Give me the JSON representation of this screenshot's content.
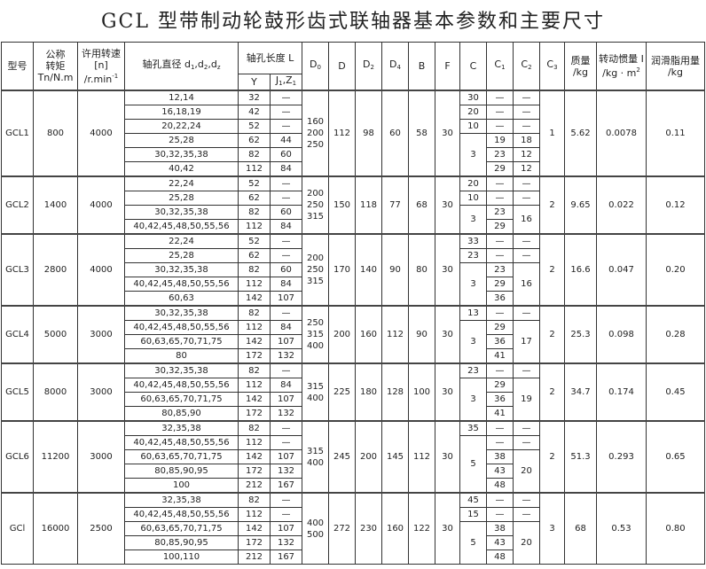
{
  "title": "GCL 型带制动轮鼓形齿式联轴器基本参数和主要尺寸",
  "header": {
    "model": "型号",
    "torque": [
      "公称",
      "转矩",
      "Tn/N.m"
    ],
    "speed": [
      "许用转速",
      "[n]",
      "/r.min",
      "-1"
    ],
    "bore": [
      "轴孔直径 d",
      "1",
      ",d",
      "2",
      ",d",
      "z"
    ],
    "length": "轴孔长度 L",
    "y": "Y",
    "j": [
      "J",
      "1",
      ",Z",
      "1"
    ],
    "d0": [
      "D",
      "0"
    ],
    "d": "D",
    "d2": [
      "D",
      "2"
    ],
    "d4": [
      "D",
      "4"
    ],
    "b": "B",
    "f": "F",
    "c": "C",
    "c1": [
      "C",
      "1"
    ],
    "c2": [
      "C",
      "2"
    ],
    "c3": [
      "C",
      "3"
    ],
    "mass": [
      "质量",
      "/kg"
    ],
    "inertia": [
      "转动惯量 I",
      "/kg · m",
      "2"
    ],
    "grease": [
      "润滑脂用量",
      "/kg"
    ]
  },
  "groups": [
    {
      "model": "GCL1",
      "torque": "800",
      "speed": "4000",
      "bores": [
        "12,14",
        "16,18,19",
        "20,22,24",
        "25,28",
        "30,32,35,38",
        "40,42"
      ],
      "y": [
        "32",
        "42",
        "52",
        "62",
        "82",
        "112"
      ],
      "j": [
        "—",
        "—",
        "—",
        "44",
        "60",
        "84"
      ],
      "d0": [
        "160",
        "200",
        "250"
      ],
      "D": "112",
      "D2": "98",
      "D4": "60",
      "B": "58",
      "F": "30",
      "c": [
        {
          "v": "30",
          "span": 1
        },
        {
          "v": "20",
          "span": 1
        },
        {
          "v": "10",
          "span": 1
        },
        {
          "v": "3",
          "span": 3
        }
      ],
      "c1": [
        "—",
        "—",
        "—",
        "19",
        "23",
        "29"
      ],
      "c2": [
        {
          "v": "—",
          "span": 1
        },
        {
          "v": "—",
          "span": 1
        },
        {
          "v": "—",
          "span": 1
        },
        {
          "v": "18",
          "span": 1
        },
        {
          "v": "12",
          "span": 1
        },
        {
          "v": "12",
          "span": 1
        }
      ],
      "c3": "1",
      "mass": "5.62",
      "inertia": "0.0078",
      "grease": "0.11"
    },
    {
      "model": "GCL2",
      "torque": "1400",
      "speed": "4000",
      "bores": [
        "22,24",
        "25,28",
        "30,32,35,38",
        "40,42,45,48,50,55,56"
      ],
      "y": [
        "52",
        "62",
        "82",
        "112"
      ],
      "j": [
        "—",
        "—",
        "60",
        "84"
      ],
      "d0": [
        "200",
        "250",
        "315"
      ],
      "D": "150",
      "D2": "118",
      "D4": "77",
      "B": "68",
      "F": "30",
      "c": [
        {
          "v": "20",
          "span": 1
        },
        {
          "v": "10",
          "span": 1
        },
        {
          "v": "3",
          "span": 2
        }
      ],
      "c1": [
        "—",
        "—",
        "23",
        "29"
      ],
      "c2": [
        {
          "v": "—",
          "span": 1
        },
        {
          "v": "—",
          "span": 1
        },
        {
          "v": "16",
          "span": 2
        }
      ],
      "c3": "2",
      "mass": "9.65",
      "inertia": "0.022",
      "grease": "0.12"
    },
    {
      "model": "GCL3",
      "torque": "2800",
      "speed": "4000",
      "bores": [
        "22,24",
        "25,28",
        "30,32,35,38",
        "40,42,45,48,50,55,56",
        "60,63"
      ],
      "y": [
        "52",
        "62",
        "82",
        "112",
        "142"
      ],
      "j": [
        "—",
        "—",
        "60",
        "84",
        "107"
      ],
      "d0": [
        "200",
        "250",
        "315"
      ],
      "D": "170",
      "D2": "140",
      "D4": "90",
      "B": "80",
      "F": "30",
      "c": [
        {
          "v": "33",
          "span": 1
        },
        {
          "v": "23",
          "span": 1
        },
        {
          "v": "3",
          "span": 3
        }
      ],
      "c1": [
        "—",
        "—",
        "23",
        "29",
        "36"
      ],
      "c2": [
        {
          "v": "—",
          "span": 1
        },
        {
          "v": "—",
          "span": 1
        },
        {
          "v": "16",
          "span": 3
        }
      ],
      "c3": "2",
      "mass": "16.6",
      "inertia": "0.047",
      "grease": "0.20"
    },
    {
      "model": "GCL4",
      "torque": "5000",
      "speed": "3000",
      "bores": [
        "30,32,35,38",
        "40,42,45,48,50,55,56",
        "60,63,65,70,71,75",
        "80"
      ],
      "y": [
        "82",
        "112",
        "142",
        "172"
      ],
      "j": [
        "—",
        "84",
        "107",
        "132"
      ],
      "d0": [
        "250",
        "315",
        "400"
      ],
      "D": "200",
      "D2": "160",
      "D4": "112",
      "B": "90",
      "F": "30",
      "c": [
        {
          "v": "13",
          "span": 1
        },
        {
          "v": "3",
          "span": 3
        }
      ],
      "c1": [
        "—",
        "29",
        "36",
        "41"
      ],
      "c2": [
        {
          "v": "—",
          "span": 1
        },
        {
          "v": "17",
          "span": 3
        }
      ],
      "c3": "2",
      "mass": "25.3",
      "inertia": "0.098",
      "grease": "0.28"
    },
    {
      "model": "GCL5",
      "torque": "8000",
      "speed": "3000",
      "bores": [
        "30,32,35,38",
        "40,42,45,48,50,55,56",
        "60,63,65,70,71,75",
        "80,85,90"
      ],
      "y": [
        "82",
        "112",
        "142",
        "172"
      ],
      "j": [
        "—",
        "84",
        "107",
        "132"
      ],
      "d0": [
        "315",
        "400"
      ],
      "D": "225",
      "D2": "180",
      "D4": "128",
      "B": "100",
      "F": "30",
      "c": [
        {
          "v": "23",
          "span": 1
        },
        {
          "v": "3",
          "span": 3
        }
      ],
      "c1": [
        "—",
        "29",
        "36",
        "41"
      ],
      "c2": [
        {
          "v": "—",
          "span": 1
        },
        {
          "v": "19",
          "span": 3
        }
      ],
      "c3": "2",
      "mass": "34.7",
      "inertia": "0.174",
      "grease": "0.45"
    },
    {
      "model": "GCL6",
      "torque": "11200",
      "speed": "3000",
      "bores": [
        "32,35,38",
        "40,42,45,48,50,55,56",
        "60,63,65,70,71,75",
        "80,85,90,95",
        "100"
      ],
      "y": [
        "82",
        "112",
        "142",
        "172",
        "212"
      ],
      "j": [
        "—",
        "—",
        "107",
        "132",
        "167"
      ],
      "d0": [
        "315",
        "400"
      ],
      "D": "245",
      "D2": "200",
      "D4": "145",
      "B": "112",
      "F": "30",
      "c": [
        {
          "v": "35",
          "span": 1
        },
        {
          "v": "5",
          "span": 4
        }
      ],
      "c1": [
        "—",
        "—",
        "38",
        "43",
        "48"
      ],
      "c2": [
        {
          "v": "—",
          "span": 1
        },
        {
          "v": "—",
          "span": 1
        },
        {
          "v": "20",
          "span": 3
        }
      ],
      "c3": "2",
      "mass": "51.3",
      "inertia": "0.293",
      "grease": "0.65"
    },
    {
      "model": "GCl",
      "torque": "16000",
      "speed": "2500",
      "bores": [
        "32,35,38",
        "40,42,45,48,50,55,56",
        "60,63,65,70,71,75",
        "80,85,90,95",
        "100,110"
      ],
      "y": [
        "82",
        "112",
        "142",
        "172",
        "212"
      ],
      "j": [
        "—",
        "—",
        "107",
        "132",
        "167"
      ],
      "d0": [
        "400",
        "500"
      ],
      "D": "272",
      "D2": "230",
      "D4": "160",
      "B": "122",
      "F": "30",
      "c": [
        {
          "v": "45",
          "span": 1
        },
        {
          "v": "15",
          "span": 1
        },
        {
          "v": "5",
          "span": 3
        }
      ],
      "c1": [
        "—",
        "—",
        "38",
        "43",
        "48"
      ],
      "c2": [
        {
          "v": "—",
          "span": 1
        },
        {
          "v": "—",
          "span": 1
        },
        {
          "v": "20",
          "span": 3
        }
      ],
      "c3": "3",
      "mass": "68",
      "inertia": "0.53",
      "grease": "0.80"
    }
  ]
}
